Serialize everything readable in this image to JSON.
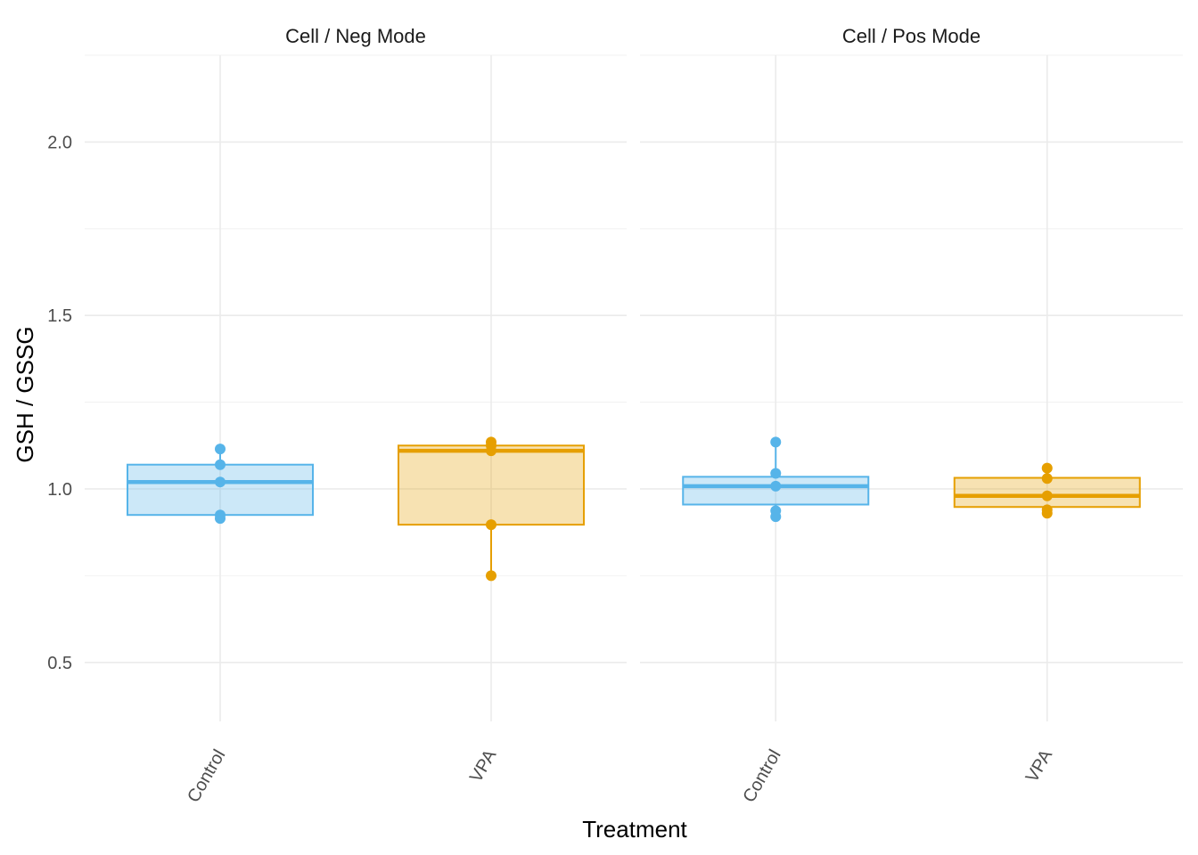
{
  "chart_data": {
    "type": "box",
    "xlabel": "Treatment",
    "ylabel": "GSH / GSSG",
    "ylim": [
      0.33,
      2.25
    ],
    "y_ticks": [
      0.5,
      1.0,
      1.5,
      2.0
    ],
    "y_tick_labels": [
      "0.5",
      "1.0",
      "1.5",
      "2.0"
    ],
    "categories": [
      "Control",
      "VPA"
    ],
    "colors": {
      "Control": "#56b4e9",
      "VPA": "#e69f00"
    },
    "grid": true,
    "legend": "none",
    "facets": [
      {
        "title": "Cell / Neg Mode",
        "groups": [
          {
            "category": "Control",
            "q1": 0.925,
            "median": 1.02,
            "q3": 1.07,
            "whisker_low": 0.915,
            "whisker_high": 1.115,
            "points": [
              1.115,
              1.07,
              1.02,
              0.925,
              0.915
            ]
          },
          {
            "category": "VPA",
            "q1": 0.897,
            "median": 1.11,
            "q3": 1.125,
            "whisker_low": 0.75,
            "whisker_high": 1.135,
            "points": [
              1.135,
              1.125,
              1.11,
              0.897,
              0.75
            ]
          }
        ]
      },
      {
        "title": "Cell / Pos Mode",
        "groups": [
          {
            "category": "Control",
            "q1": 0.955,
            "median": 1.008,
            "q3": 1.035,
            "whisker_low": 0.92,
            "whisker_high": 1.135,
            "points": [
              1.135,
              1.045,
              1.008,
              0.937,
              0.92
            ]
          },
          {
            "category": "VPA",
            "q1": 0.948,
            "median": 0.98,
            "q3": 1.032,
            "whisker_low": 0.93,
            "whisker_high": 1.06,
            "points": [
              1.06,
              1.03,
              0.98,
              0.94,
              0.93
            ]
          }
        ]
      }
    ]
  }
}
